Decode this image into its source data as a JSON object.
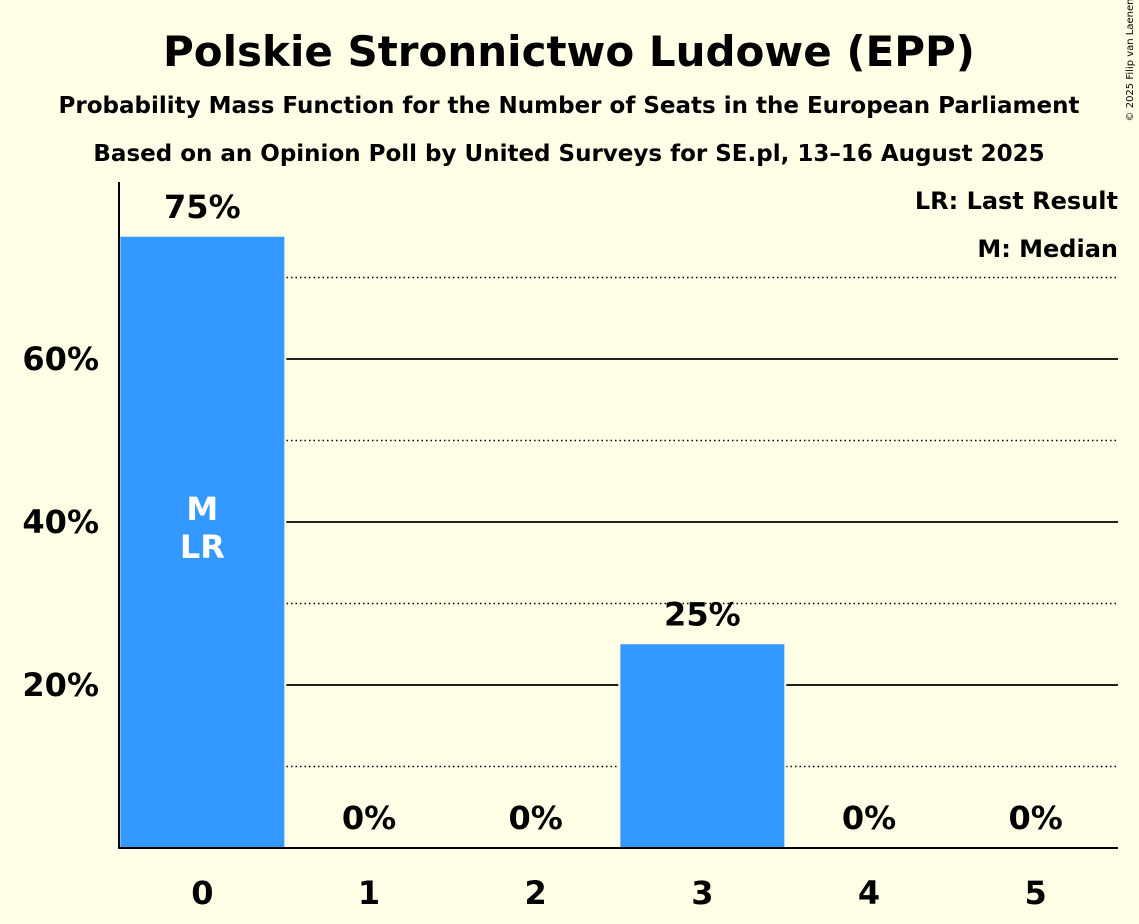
{
  "colors": {
    "background": "#FFFEE6",
    "bar": "#3399FF",
    "text": "#000000",
    "inbar_text": "#FFFFFF"
  },
  "chart_data": {
    "type": "bar",
    "title": "Polskie Stronnictwo Ludowe (EPP)",
    "subtitle": "Probability Mass Function for the Number of Seats in the European Parliament",
    "subtitle2": "Based on an Opinion Poll by United Surveys for SE.pl, 13–16 August 2025",
    "copyright": "© 2025 Filip van Laenen",
    "categories": [
      "0",
      "1",
      "2",
      "3",
      "4",
      "5"
    ],
    "values": [
      75,
      0,
      0,
      25,
      0,
      0
    ],
    "value_labels": [
      "75%",
      "0%",
      "0%",
      "25%",
      "0%",
      "0%"
    ],
    "ylim": [
      0,
      80
    ],
    "y_major_ticks": [
      20,
      40,
      60
    ],
    "y_tick_labels": [
      "20%",
      "40%",
      "60%"
    ],
    "y_minor_gridlines": [
      10,
      30,
      50,
      70
    ],
    "grid": true,
    "legend_position": "top-right",
    "legend": [
      "LR: Last Result",
      "M: Median"
    ],
    "annotations": [
      {
        "category": "0",
        "lines": [
          "M",
          "LR"
        ]
      }
    ]
  }
}
